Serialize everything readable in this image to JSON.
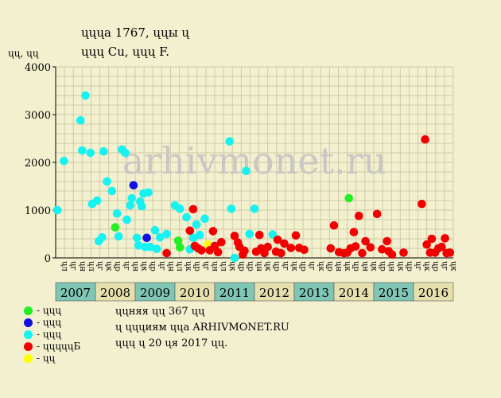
{
  "title": {
    "line1": "ųųųа 1767, ųųы ų",
    "line2": "ųųų Cu, ųųų F."
  },
  "watermark": "arhivmonet.ru",
  "colors": {
    "grid": "#cfcba6",
    "plot_bg": "#f2f0cf",
    "year_odd": "#7fc6b5",
    "year_even": "#e6e0ae",
    "green": "#22ee22",
    "blue": "#1010e0",
    "cyan": "#16f2f2",
    "red": "#f20000",
    "yellow": "#ffff00"
  },
  "legend": [
    {
      "label": "- ųųų",
      "color": "#22ee22"
    },
    {
      "label": "- ųųų",
      "color": "#1010e0"
    },
    {
      "label": "- ųųų",
      "color": "#16f2f2"
    },
    {
      "label": "- ųųųųųБ",
      "color": "#f20000"
    },
    {
      "label": "- ųų",
      "color": "#ffff00"
    }
  ],
  "notes": [
    "ųųняя ųų 367 ųų",
    "ų ųųųиям ųųа ARHIVMONET.RU",
    "ųųų ų 20 ųя 2017 ųų."
  ],
  "chart_data": {
    "type": "scatter",
    "title": "",
    "ylabel": "ųų, ųų",
    "ylim": [
      0,
      4000
    ],
    "yticks": [
      0,
      1000,
      2000,
      3000,
      4000
    ],
    "grid": true,
    "legend_position": "bottom-left",
    "x_unit": "month slot (12 per year, 2007-2016)",
    "month_labels": [
      "ųл",
      "ųг",
      "ųн",
      "ųл",
      "ųг",
      "ųк",
      "ųр",
      "ųг",
      "ųн",
      "ųк",
      "ųр",
      "ųг",
      "ųн",
      "ųл",
      "ųк",
      "ųр",
      "ųг",
      "ųн",
      "ųл",
      "ųк",
      "ųр",
      "ųр",
      "ųн",
      "ųк",
      "ųр",
      "ųг",
      "ųк",
      "ųр",
      "ųг",
      "ųк",
      "ųр",
      "ųн",
      "ųк",
      "ųр",
      "ųн",
      "ųк",
      "ųр",
      "ųн",
      "ųк",
      "ųр",
      "ųг",
      "ųк",
      "ųр",
      "ųг",
      "ųк"
    ],
    "years": [
      "2007",
      "2008",
      "2009",
      "2010",
      "2011",
      "2012",
      "2013",
      "2014",
      "2015",
      "2016"
    ],
    "series": [
      {
        "key": "cyan",
        "points": [
          [
            0.1,
            1000
          ],
          [
            0.5,
            2030
          ],
          [
            1.5,
            2880
          ],
          [
            1.6,
            2250
          ],
          [
            1.8,
            3400
          ],
          [
            2.1,
            2200
          ],
          [
            2.2,
            1130
          ],
          [
            2.5,
            1200
          ],
          [
            2.6,
            350
          ],
          [
            2.8,
            430
          ],
          [
            2.9,
            2230
          ],
          [
            3.1,
            1600
          ],
          [
            3.4,
            1400
          ],
          [
            3.7,
            930
          ],
          [
            3.8,
            450
          ],
          [
            4.0,
            2270
          ],
          [
            4.2,
            2200
          ],
          [
            4.3,
            800
          ],
          [
            4.5,
            1100
          ],
          [
            4.6,
            1250
          ],
          [
            4.9,
            420
          ],
          [
            5.0,
            260
          ],
          [
            5.1,
            1180
          ],
          [
            5.2,
            1080
          ],
          [
            5.3,
            1350
          ],
          [
            5.4,
            230
          ],
          [
            5.6,
            1370
          ],
          [
            5.7,
            230
          ],
          [
            6.0,
            580
          ],
          [
            6.1,
            190
          ],
          [
            6.3,
            430
          ],
          [
            6.7,
            500
          ],
          [
            7.2,
            1100
          ],
          [
            7.5,
            1030
          ],
          [
            7.9,
            850
          ],
          [
            8.1,
            180
          ],
          [
            8.3,
            420
          ],
          [
            8.5,
            700
          ],
          [
            8.7,
            480
          ],
          [
            9.0,
            820
          ],
          [
            10.5,
            2440
          ],
          [
            10.6,
            1030
          ],
          [
            10.8,
            0
          ],
          [
            11.5,
            1820
          ],
          [
            11.7,
            500
          ],
          [
            12.0,
            1030
          ],
          [
            13.1,
            490
          ]
        ]
      },
      {
        "key": "blue",
        "points": [
          [
            4.7,
            1520
          ],
          [
            5.5,
            420
          ]
        ]
      },
      {
        "key": "green",
        "points": [
          [
            3.6,
            640
          ],
          [
            7.4,
            360
          ],
          [
            7.5,
            220
          ],
          [
            17.7,
            1250
          ]
        ]
      },
      {
        "key": "yellow",
        "points": [
          [
            9.2,
            280
          ]
        ]
      },
      {
        "key": "red",
        "points": [
          [
            6.7,
            100
          ],
          [
            8.1,
            570
          ],
          [
            8.3,
            1020
          ],
          [
            8.4,
            250
          ],
          [
            8.6,
            200
          ],
          [
            8.8,
            160
          ],
          [
            9.3,
            160
          ],
          [
            9.5,
            560
          ],
          [
            9.6,
            250
          ],
          [
            9.8,
            120
          ],
          [
            10.0,
            330
          ],
          [
            10.8,
            460
          ],
          [
            11.0,
            320
          ],
          [
            11.1,
            230
          ],
          [
            11.3,
            70
          ],
          [
            11.4,
            150
          ],
          [
            12.1,
            130
          ],
          [
            12.3,
            480
          ],
          [
            12.4,
            200
          ],
          [
            12.6,
            100
          ],
          [
            12.8,
            230
          ],
          [
            13.3,
            130
          ],
          [
            13.4,
            380
          ],
          [
            13.6,
            100
          ],
          [
            13.8,
            300
          ],
          [
            14.2,
            210
          ],
          [
            14.5,
            470
          ],
          [
            14.7,
            210
          ],
          [
            15.0,
            170
          ],
          [
            16.6,
            200
          ],
          [
            16.8,
            680
          ],
          [
            17.1,
            120
          ],
          [
            17.4,
            100
          ],
          [
            17.6,
            110
          ],
          [
            17.8,
            200
          ],
          [
            18.0,
            540
          ],
          [
            18.1,
            240
          ],
          [
            18.3,
            880
          ],
          [
            18.5,
            100
          ],
          [
            18.7,
            350
          ],
          [
            19.0,
            220
          ],
          [
            19.4,
            920
          ],
          [
            19.7,
            180
          ],
          [
            20.0,
            350
          ],
          [
            20.1,
            140
          ],
          [
            20.3,
            70
          ],
          [
            21.0,
            110
          ],
          [
            22.1,
            1130
          ],
          [
            22.3,
            2480
          ],
          [
            22.4,
            280
          ],
          [
            22.6,
            110
          ],
          [
            22.7,
            400
          ],
          [
            22.9,
            110
          ],
          [
            23.1,
            200
          ],
          [
            23.3,
            230
          ],
          [
            23.5,
            410
          ],
          [
            23.6,
            100
          ],
          [
            23.8,
            110
          ]
        ]
      }
    ]
  }
}
